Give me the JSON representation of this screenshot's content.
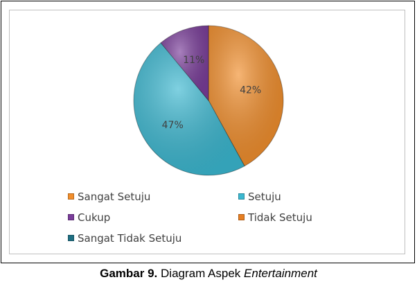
{
  "chart_data": {
    "type": "pie",
    "categories": [
      "Sangat Setuju",
      "Setuju",
      "Cukup",
      "Tidak Setuju",
      "Sangat Tidak Setuju"
    ],
    "values": [
      42,
      47,
      11,
      0,
      0
    ],
    "data_labels": [
      "42%",
      "47%",
      "11%",
      "",
      ""
    ],
    "colors": [
      "#f28e2b",
      "#3bb8d1",
      "#7a3d9a",
      "#e67e22",
      "#1f6f83"
    ],
    "legend_position": "bottom"
  },
  "caption": {
    "label": "Gambar 9.",
    "text": "Diagram Aspek",
    "italic": "Entertainment"
  }
}
